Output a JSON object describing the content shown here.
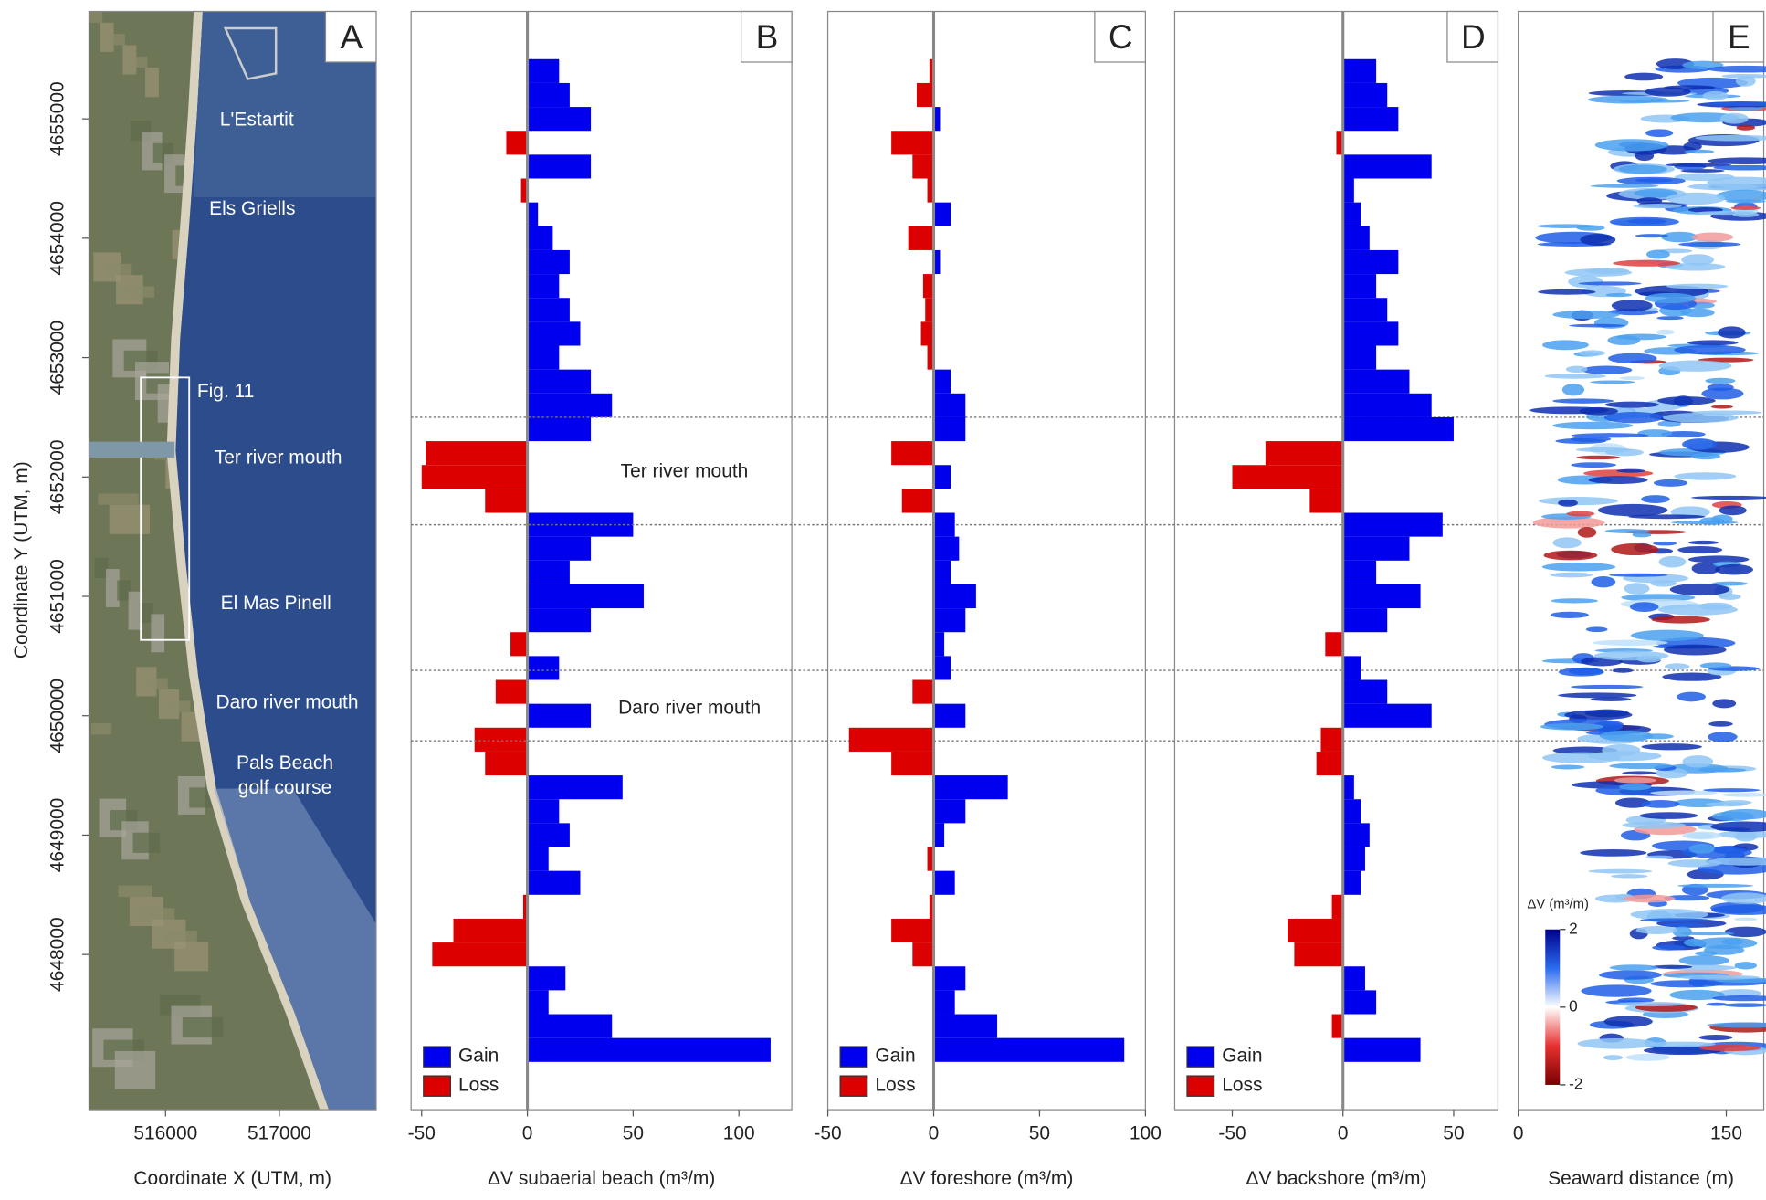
{
  "chart_data": [
    {
      "type": "map",
      "label": "A",
      "xlabel": "Coordinate X (UTM, m)",
      "ylabel": "Coordinate Y (UTM, m)",
      "xlim": [
        515327,
        517851
      ],
      "xticks": [
        516000,
        517000
      ],
      "ylim": [
        4646700,
        4655900
      ],
      "yticks": [
        4648000,
        4649000,
        4650000,
        4651000,
        4652000,
        4653000,
        4654000,
        4655000
      ],
      "annotations": [
        [
          "L'Estartit"
        ],
        [
          "Els Griells"
        ],
        [
          "Fig. 11"
        ],
        [
          "Ter river mouth"
        ],
        [
          "El Mas Pinell"
        ],
        [
          "Daro river mouth"
        ],
        [
          "Pals Beach",
          "golf course"
        ]
      ]
    },
    {
      "type": "profile",
      "label": "B",
      "xlabel": "ΔV subaerial beach (m³/m)",
      "xlim": [
        -55,
        125
      ],
      "xticks": [
        -50,
        0,
        50,
        100
      ],
      "ylim": [
        4646700,
        4655900
      ],
      "legend": [
        {
          "name": "Gain",
          "color": "#0000ee"
        },
        {
          "name": "Loss",
          "color": "#dd0000"
        }
      ],
      "hlines": [
        4652500,
        4651600,
        4650380,
        4649790
      ],
      "annotations": [
        "Ter river mouth",
        "Daro river mouth"
      ],
      "y": [
        4655400,
        4655200,
        4655000,
        4654800,
        4654600,
        4654400,
        4654200,
        4654000,
        4653800,
        4653600,
        4653400,
        4653200,
        4653000,
        4652800,
        4652600,
        4652400,
        4652200,
        4652000,
        4651800,
        4651600,
        4651400,
        4651200,
        4651000,
        4650800,
        4650600,
        4650400,
        4650200,
        4650000,
        4649800,
        4649600,
        4649400,
        4649200,
        4649000,
        4648800,
        4648600,
        4648400,
        4648200,
        4648000,
        4647800,
        4647600,
        4647400,
        4647200
      ],
      "values": [
        15,
        20,
        30,
        -10,
        30,
        -3,
        5,
        12,
        20,
        15,
        20,
        25,
        15,
        30,
        40,
        30,
        -48,
        -50,
        -20,
        50,
        30,
        20,
        55,
        30,
        -8,
        15,
        -15,
        30,
        -25,
        -20,
        45,
        15,
        20,
        10,
        25,
        -2,
        -35,
        -45,
        18,
        10,
        40,
        115
      ]
    },
    {
      "type": "profile",
      "label": "C",
      "xlabel": "ΔV foreshore (m³/m)",
      "xlim": [
        -50,
        100
      ],
      "xticks": [
        -50,
        0,
        50,
        100
      ],
      "ylim": [
        4646700,
        4655900
      ],
      "legend": [
        {
          "name": "Gain",
          "color": "#0000ee"
        },
        {
          "name": "Loss",
          "color": "#dd0000"
        }
      ],
      "y": [
        4655400,
        4655200,
        4655000,
        4654800,
        4654600,
        4654400,
        4654200,
        4654000,
        4653800,
        4653600,
        4653400,
        4653200,
        4653000,
        4652800,
        4652600,
        4652400,
        4652200,
        4652000,
        4651800,
        4651600,
        4651400,
        4651200,
        4651000,
        4650800,
        4650600,
        4650400,
        4650200,
        4650000,
        4649800,
        4649600,
        4649400,
        4649200,
        4649000,
        4648800,
        4648600,
        4648400,
        4648200,
        4648000,
        4647800,
        4647600,
        4647400,
        4647200
      ],
      "values": [
        -2,
        -8,
        3,
        -20,
        -10,
        -3,
        8,
        -12,
        3,
        -5,
        -4,
        -6,
        -3,
        8,
        15,
        15,
        -20,
        8,
        -15,
        10,
        12,
        8,
        20,
        15,
        5,
        8,
        -10,
        15,
        -40,
        -20,
        35,
        15,
        5,
        -3,
        10,
        -2,
        -20,
        -10,
        15,
        10,
        30,
        90
      ]
    },
    {
      "type": "profile",
      "label": "D",
      "xlabel": "ΔV backshore (m³/m)",
      "xlim": [
        -76,
        70
      ],
      "xticks": [
        -50,
        0,
        50
      ],
      "ylim": [
        4646700,
        4655900
      ],
      "legend": [
        {
          "name": "Gain",
          "color": "#0000ee"
        },
        {
          "name": "Loss",
          "color": "#dd0000"
        }
      ],
      "y": [
        4655400,
        4655200,
        4655000,
        4654800,
        4654600,
        4654400,
        4654200,
        4654000,
        4653800,
        4653600,
        4653400,
        4653200,
        4653000,
        4652800,
        4652600,
        4652400,
        4652200,
        4652000,
        4651800,
        4651600,
        4651400,
        4651200,
        4651000,
        4650800,
        4650600,
        4650400,
        4650200,
        4650000,
        4649800,
        4649600,
        4649400,
        4649200,
        4649000,
        4648800,
        4648600,
        4648400,
        4648200,
        4648000,
        4647800,
        4647600,
        4647400,
        4647200
      ],
      "values": [
        15,
        20,
        25,
        -3,
        40,
        5,
        8,
        12,
        25,
        15,
        20,
        25,
        15,
        30,
        40,
        50,
        -35,
        -50,
        -15,
        45,
        30,
        15,
        35,
        20,
        -8,
        8,
        20,
        40,
        -10,
        -12,
        5,
        8,
        12,
        10,
        8,
        -5,
        -25,
        -22,
        10,
        15,
        -5,
        35
      ]
    },
    {
      "type": "heatmap",
      "label": "E",
      "xlabel": "Seaward distance (m)",
      "xlim": [
        0,
        177
      ],
      "xticks": [
        0,
        150
      ],
      "colorbar_label": "ΔV (m³/m)",
      "clim": [
        -2,
        2
      ],
      "cticks": [
        2,
        0,
        -2
      ]
    }
  ]
}
